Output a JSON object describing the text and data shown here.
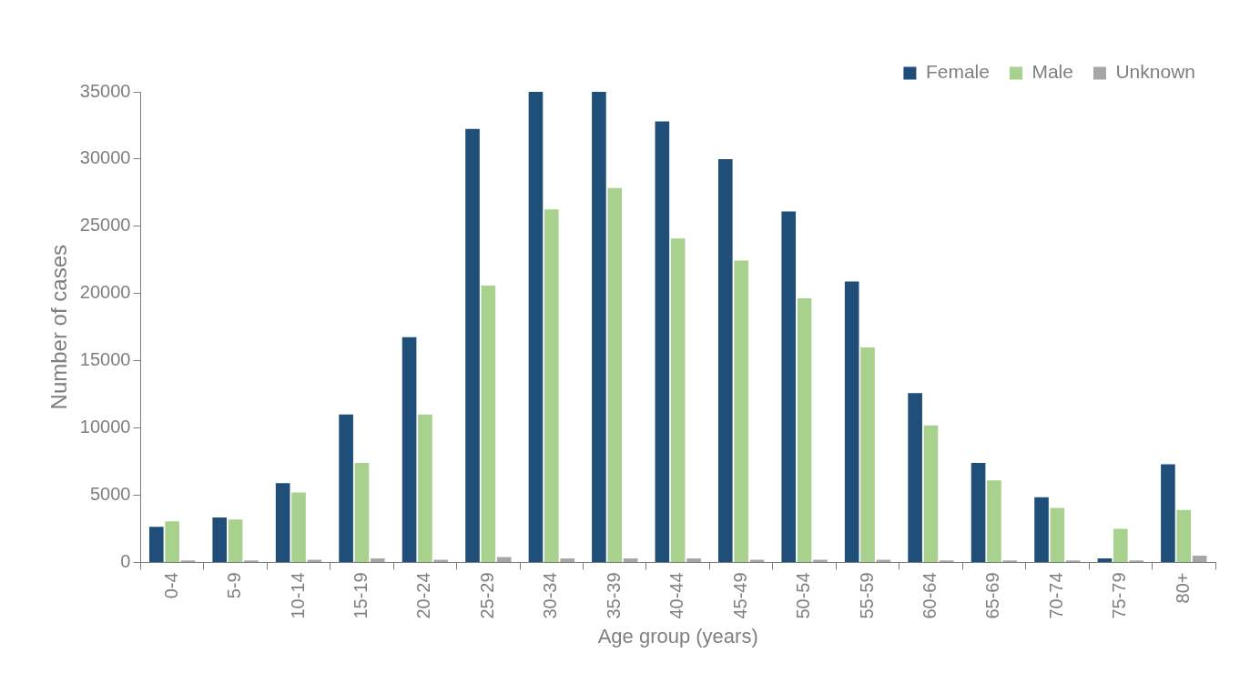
{
  "chart_data": {
    "type": "bar",
    "xlabel": "Age group (years)",
    "ylabel": "Number of cases",
    "categories": [
      "0-4",
      "5-9",
      "10-14",
      "15-19",
      "20-24",
      "25-29",
      "30-34",
      "35-39",
      "40-44",
      "45-49",
      "50-54",
      "55-59",
      "60-64",
      "65-69",
      "70-74",
      "75-79",
      "80+"
    ],
    "series": [
      {
        "name": "Female",
        "color": "#1f4e79",
        "values": [
          2650,
          3350,
          5900,
          11000,
          16750,
          32250,
          35000,
          35000,
          32800,
          30000,
          26100,
          20900,
          12600,
          7400,
          4850,
          300,
          7300
        ]
      },
      {
        "name": "Male",
        "color": "#a9d18e",
        "values": [
          3050,
          3200,
          5200,
          7400,
          11000,
          20600,
          26250,
          27850,
          24100,
          22450,
          19650,
          16000,
          10200,
          6100,
          4050,
          2500,
          3900
        ]
      },
      {
        "name": "Unknown",
        "color": "#a6a6a6",
        "values": [
          150,
          150,
          200,
          300,
          200,
          400,
          300,
          300,
          300,
          200,
          200,
          200,
          150,
          150,
          150,
          150,
          500
        ]
      }
    ],
    "ylim": [
      0,
      35000
    ],
    "yticks": [
      0,
      5000,
      10000,
      15000,
      20000,
      25000,
      30000,
      35000
    ],
    "grid": false,
    "legend": "top right"
  }
}
